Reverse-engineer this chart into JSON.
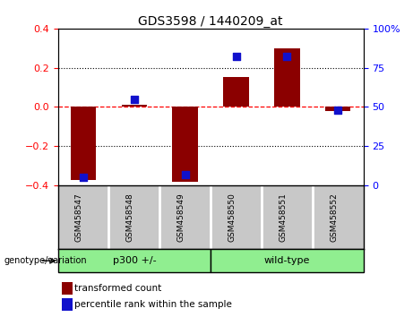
{
  "title": "GDS3598 / 1440209_at",
  "samples": [
    "GSM458547",
    "GSM458548",
    "GSM458549",
    "GSM458550",
    "GSM458551",
    "GSM458552"
  ],
  "red_values": [
    -0.37,
    0.01,
    -0.38,
    0.155,
    0.3,
    -0.02
  ],
  "blue_values_pct": [
    5,
    55,
    7,
    82,
    82,
    48
  ],
  "group_labels": [
    "p300 +/-",
    "wild-type"
  ],
  "group_ranges": [
    [
      0,
      3
    ],
    [
      3,
      6
    ]
  ],
  "group_color": "#90EE90",
  "genotype_label": "genotype/variation",
  "ylim_left": [
    -0.4,
    0.4
  ],
  "ylim_right": [
    0,
    100
  ],
  "yticks_left": [
    -0.4,
    -0.2,
    0.0,
    0.2,
    0.4
  ],
  "yticks_right": [
    0,
    25,
    50,
    75,
    100
  ],
  "dotted_lines": [
    -0.2,
    0.2
  ],
  "bar_color": "#8B0000",
  "dot_color": "#1111CC",
  "bar_width": 0.5,
  "dot_size": 30,
  "legend_items": [
    "transformed count",
    "percentile rank within the sample"
  ],
  "sample_box_bg": "#C8C8C8",
  "plot_bg": "#ffffff",
  "title_fontsize": 10,
  "label_fontsize": 7.5,
  "legend_fontsize": 7.5
}
